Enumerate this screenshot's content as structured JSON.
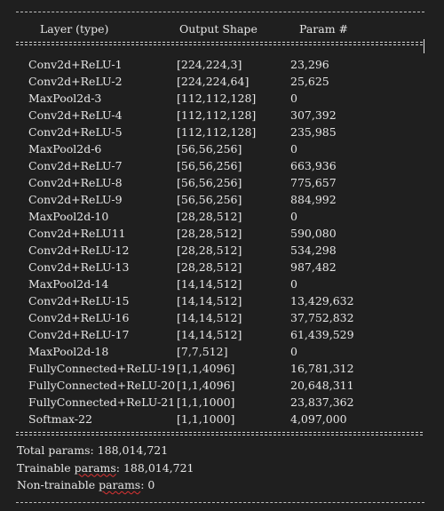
{
  "header": {
    "col_layer": "Layer (type)",
    "col_shape": "Output Shape",
    "col_params": "Param #"
  },
  "rows": [
    {
      "layer": "Conv2d+ReLU-1",
      "shape": "[224,224,3]",
      "params": "23,296"
    },
    {
      "layer": "Conv2d+ReLU-2",
      "shape": "[224,224,64]",
      "params": "25,625"
    },
    {
      "layer": "MaxPool2d-3",
      "shape": "[112,112,128]",
      "params": "0"
    },
    {
      "layer": "Conv2d+ReLU-4",
      "shape": "[112,112,128]",
      "params": "307,392"
    },
    {
      "layer": "Conv2d+ReLU-5",
      "shape": "[112,112,128]",
      "params": "235,985"
    },
    {
      "layer": "MaxPool2d-6",
      "shape": "[56,56,256]",
      "params": "0"
    },
    {
      "layer": "Conv2d+ReLU-7",
      "shape": "[56,56,256]",
      "params": "663,936"
    },
    {
      "layer": "Conv2d+ReLU-8",
      "shape": "[56,56,256]",
      "params": "775,657"
    },
    {
      "layer": "Conv2d+ReLU-9",
      "shape": "[56,56,256]",
      "params": "884,992"
    },
    {
      "layer": "MaxPool2d-10",
      "shape": "[28,28,512]",
      "params": "0"
    },
    {
      "layer": "Conv2d+ReLU11",
      "shape": "[28,28,512]",
      "params": "590,080"
    },
    {
      "layer": "Conv2d+ReLU-12",
      "shape": "[28,28,512]",
      "params": "534,298"
    },
    {
      "layer": "Conv2d+ReLU-13",
      "shape": "[28,28,512]",
      "params": "987,482"
    },
    {
      "layer": "MaxPool2d-14",
      "shape": "[14,14,512]",
      "params": "0"
    },
    {
      "layer": "Conv2d+ReLU-15",
      "shape": "[14,14,512]",
      "params": "13,429,632"
    },
    {
      "layer": "Conv2d+ReLU-16",
      "shape": "[14,14,512]",
      "params": "37,752,832"
    },
    {
      "layer": "Conv2d+ReLU-17",
      "shape": "[14,14,512]",
      "params": "61,439,529"
    },
    {
      "layer": "MaxPool2d-18",
      "shape": "[7,7,512]",
      "params": "0"
    },
    {
      "layer": "FullyConnected+ReLU-19",
      "shape": "[1,1,4096]",
      "params": "16,781,312"
    },
    {
      "layer": "FullyConnected+ReLU-20",
      "shape": "[1,1,4096]",
      "params": "20,648,311"
    },
    {
      "layer": "FullyConnected+ReLU-21",
      "shape": "[1,1,1000]",
      "params": "23,837,362"
    },
    {
      "layer": "Softmax-22",
      "shape": "[1,1,1000]",
      "params": "4,097,000"
    }
  ],
  "summary": {
    "total_label": "Total params",
    "total_value": ": 188,014,721",
    "trainable_prefix": "Trainable ",
    "trainable_word": "params",
    "trainable_value": ": 188,014,721",
    "nontrainable_prefix": "Non-trainable ",
    "nontrainable_word": "params",
    "nontrainable_value": ": 0"
  }
}
